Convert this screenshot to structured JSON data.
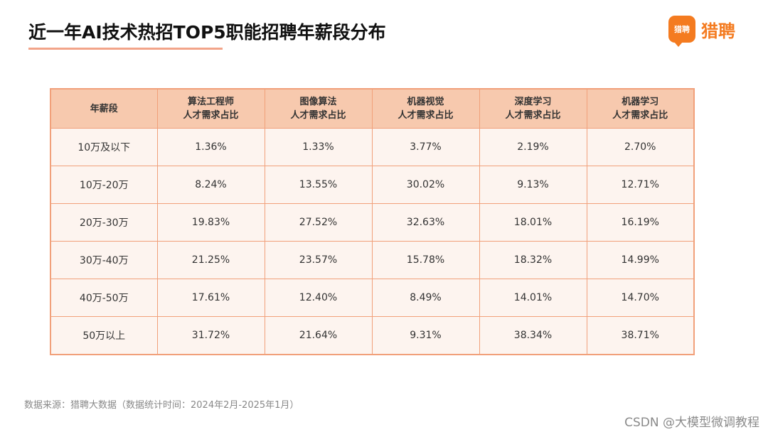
{
  "title": "近一年AI技术热招TOP5职能招聘年薪段分布",
  "logo": {
    "badge_text": "猎聘",
    "text": "猎聘"
  },
  "chart_data": {
    "type": "table",
    "columns": [
      "年薪段",
      "算法工程师\n人才需求占比",
      "图像算法\n人才需求占比",
      "机器视觉\n人才需求占比",
      "深度学习\n人才需求占比",
      "机器学习\n人才需求占比"
    ],
    "rows": [
      [
        "10万及以下",
        "1.36%",
        "1.33%",
        "3.77%",
        "2.19%",
        "2.70%"
      ],
      [
        "10万-20万",
        "8.24%",
        "13.55%",
        "30.02%",
        "9.13%",
        "12.71%"
      ],
      [
        "20万-30万",
        "19.83%",
        "27.52%",
        "32.63%",
        "18.01%",
        "16.19%"
      ],
      [
        "30万-40万",
        "21.25%",
        "23.57%",
        "15.78%",
        "18.32%",
        "14.99%"
      ],
      [
        "40万-50万",
        "17.61%",
        "12.40%",
        "8.49%",
        "14.01%",
        "14.70%"
      ],
      [
        "50万以上",
        "31.72%",
        "21.64%",
        "9.31%",
        "38.34%",
        "38.71%"
      ]
    ]
  },
  "source": "数据来源：猎聘大数据（数据统计时间：2024年2月-2025年1月）",
  "watermark": "CSDN @大模型微调教程",
  "colors": {
    "accent": "#f47b20",
    "header_bg": "#f7c9ae",
    "cell_bg": "#fdf4ef",
    "border": "#f1a07a"
  }
}
